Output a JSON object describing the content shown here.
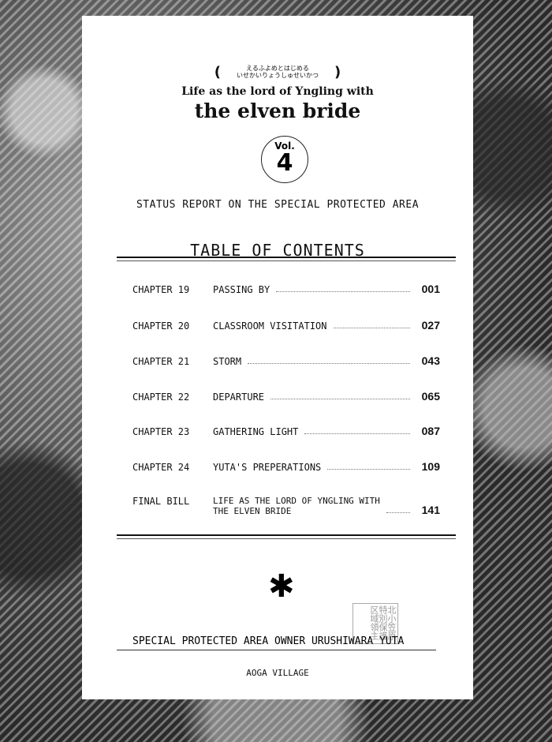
{
  "header": {
    "furigana_line1": "えるふよめとはじめる",
    "furigana_line2": "いせかいりょうしゅせいかつ",
    "title_line1": "Life as the lord of Yngling with",
    "title_line2": "the elven bride",
    "vol_label": "Vol.",
    "vol_number": "4"
  },
  "subtitle": "Status Report on the Special Protected Area",
  "toc_title": "Table of Contents",
  "chapters": [
    {
      "chapter": "Chapter 19",
      "title": "Passing By",
      "page": "001"
    },
    {
      "chapter": "Chapter 20",
      "title": "Classroom Visitation",
      "page": "027"
    },
    {
      "chapter": "Chapter 21",
      "title": "Storm",
      "page": "043"
    },
    {
      "chapter": "Chapter 22",
      "title": "Departure",
      "page": "065"
    },
    {
      "chapter": "Chapter 23",
      "title": "Gathering Light",
      "page": "087"
    },
    {
      "chapter": "Chapter 24",
      "title": "Yuta's Preperations",
      "page": "109"
    },
    {
      "chapter": "Final Bill",
      "title_line1": "Life as the Lord of Yngling with",
      "title_line2": "the Elven Bride",
      "page": "141"
    }
  ],
  "stamp_text": "北小笠原特別保護区域領主",
  "owner": "Special Protected Area Owner Urushiwara Yuta",
  "village": "Aoga Village"
}
